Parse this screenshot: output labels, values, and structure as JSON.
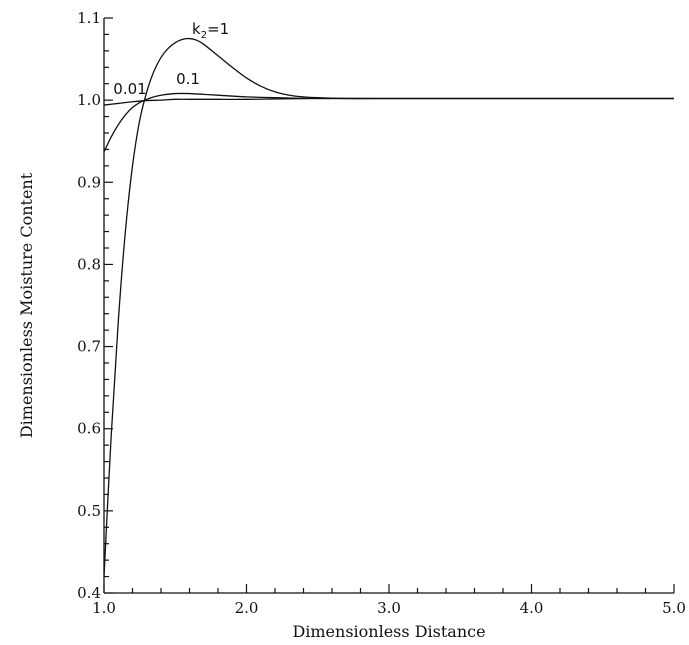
{
  "chart_data": {
    "type": "line",
    "title": "",
    "xlabel": "Dimensionless Distance",
    "ylabel": "Dimensionless Moisture Content",
    "xlim": [
      1.0,
      5.0
    ],
    "ylim": [
      0.4,
      1.1
    ],
    "grid": false,
    "legend": "none",
    "x_ticks": [
      "1.0",
      "2.0",
      "3.0",
      "4.0",
      "5.0"
    ],
    "y_ticks": [
      "0.4",
      "0.5",
      "0.6",
      "0.7",
      "0.8",
      "0.9",
      "1.0",
      "1.1"
    ],
    "series": [
      {
        "name": "k2=1",
        "label_parts": {
          "base": "k",
          "sub": "2",
          "rest": "=1"
        },
        "x": [
          1.0,
          1.05,
          1.1,
          1.15,
          1.2,
          1.25,
          1.3,
          1.35,
          1.4,
          1.45,
          1.5,
          1.55,
          1.6,
          1.65,
          1.7,
          1.8,
          1.9,
          2.0,
          2.1,
          2.2,
          2.3,
          2.4,
          2.5,
          2.7,
          3.0,
          3.5,
          4.0,
          4.5,
          5.0
        ],
        "y": [
          0.42,
          0.59,
          0.73,
          0.84,
          0.92,
          0.975,
          1.01,
          1.035,
          1.052,
          1.063,
          1.07,
          1.074,
          1.075,
          1.073,
          1.068,
          1.054,
          1.04,
          1.027,
          1.017,
          1.01,
          1.006,
          1.004,
          1.003,
          1.002,
          1.002,
          1.002,
          1.002,
          1.002,
          1.002
        ]
      },
      {
        "name": "0.1",
        "label_parts": {
          "base": "0.1",
          "sub": "",
          "rest": ""
        },
        "x": [
          1.0,
          1.05,
          1.1,
          1.15,
          1.2,
          1.25,
          1.3,
          1.35,
          1.4,
          1.5,
          1.6,
          1.7,
          1.8,
          2.0,
          2.2,
          2.5,
          3.0,
          3.5,
          4.0,
          4.5,
          5.0
        ],
        "y": [
          0.937,
          0.955,
          0.97,
          0.982,
          0.991,
          0.997,
          1.001,
          1.004,
          1.006,
          1.008,
          1.008,
          1.007,
          1.006,
          1.004,
          1.003,
          1.002,
          1.002,
          1.002,
          1.002,
          1.002,
          1.002
        ]
      },
      {
        "name": "0.01",
        "label_parts": {
          "base": "0.01",
          "sub": "",
          "rest": ""
        },
        "x": [
          1.0,
          1.1,
          1.2,
          1.3,
          1.4,
          1.5,
          1.6,
          1.8,
          2.0,
          2.5,
          3.0,
          4.0,
          5.0
        ],
        "y": [
          0.994,
          0.996,
          0.998,
          0.9995,
          1.0,
          1.001,
          1.001,
          1.001,
          1.001,
          1.002,
          1.002,
          1.002,
          1.002
        ]
      }
    ]
  }
}
